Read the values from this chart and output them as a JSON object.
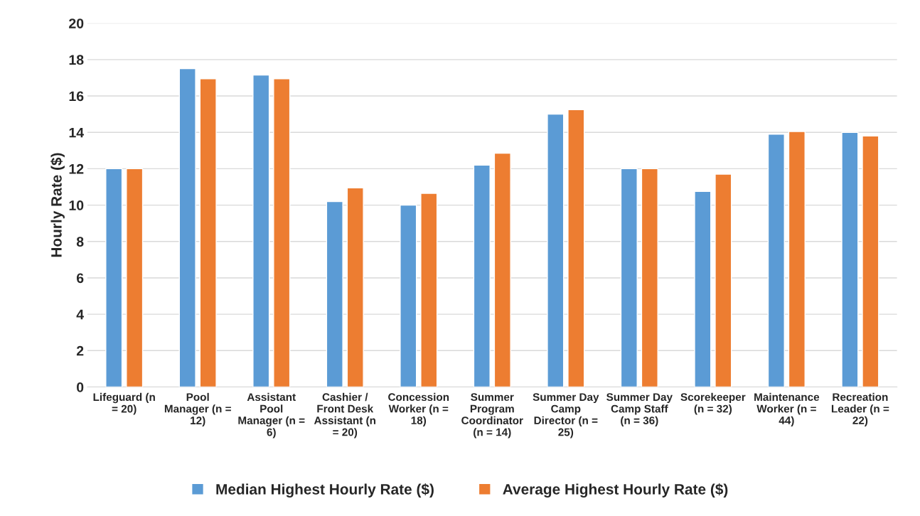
{
  "chart_data": {
    "type": "bar",
    "ylabel": "Hourly Rate ($)",
    "categories": [
      "Lifeguard (n\n= 20)",
      "Pool\nManager (n =\n12)",
      "Assistant\nPool\nManager (n =\n6)",
      "Cashier /\nFront Desk\nAssistant (n\n= 20)",
      "Concession\nWorker (n =\n18)",
      "Summer\nProgram\nCoordinator\n(n = 14)",
      "Summer Day\nCamp\nDirector (n =\n25)",
      "Summer Day\nCamp Staff\n(n = 36)",
      "Scorekeeper\n(n = 32)",
      "Maintenance\nWorker (n =\n44)",
      "Recreation\nLeader (n =\n22)"
    ],
    "series": [
      {
        "name": "Median Highest Hourly Rate ($)",
        "color": "#5b9bd5",
        "values": [
          12,
          17.5,
          17.15,
          10.2,
          10,
          12.2,
          15,
          12,
          10.75,
          13.9,
          14
        ]
      },
      {
        "name": "Average Highest Hourly Rate ($)",
        "color": "#ed7d31",
        "values": [
          12,
          16.95,
          16.95,
          10.95,
          10.65,
          12.85,
          15.25,
          12,
          11.7,
          14.05,
          13.8
        ]
      }
    ],
    "ylim": [
      0,
      20
    ],
    "yticks": [
      0,
      2,
      4,
      6,
      8,
      10,
      12,
      14,
      16,
      18,
      20
    ],
    "grid": "y",
    "legend": "bottom"
  }
}
